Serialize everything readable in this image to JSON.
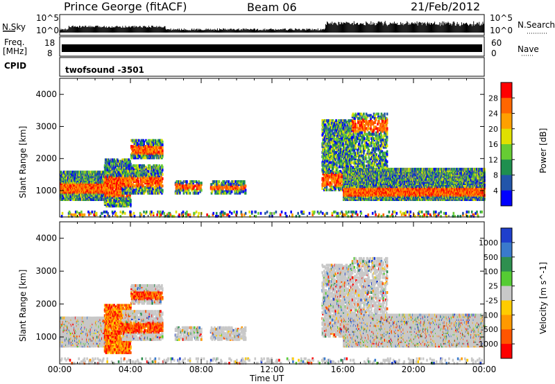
{
  "header": {
    "station": "Prince George (fitACF)",
    "beam": "Beam 06",
    "date": "21/Feb/2012"
  },
  "side_labels": {
    "nsky": "N.Sky",
    "freq_line1": "Freq.",
    "freq_line2": "[MHz]",
    "cpid": "CPID",
    "nsearch": "N.Search",
    "nave": "Nave"
  },
  "noise_axis": {
    "left_top": "10^5",
    "left_bottom": "10^0",
    "right_top": "10^5",
    "right_bottom": "10^0"
  },
  "freq_axis": {
    "left_top": "18",
    "left_bottom": "8",
    "right_top": "60",
    "right_bottom": "0"
  },
  "cpid_text": "twofsound -3501",
  "colors": {
    "frame": "#000000",
    "background": "#ffffff"
  },
  "chart_data": [
    {
      "type": "heatmap",
      "panel": "power",
      "ylabel": "Slant Range [km]",
      "xlabel": "Time UT",
      "ylim": [
        180,
        4500
      ],
      "y_ticks": [
        "1000",
        "2000",
        "3000",
        "4000"
      ],
      "x_ticks": [
        "00:00",
        "04:00",
        "08:00",
        "12:00",
        "16:00",
        "20:00",
        "00:00"
      ],
      "colorbar": {
        "label": "Power [dB]",
        "ticks": [
          "28",
          "24",
          "20",
          "16",
          "12",
          "8",
          "4"
        ],
        "colors": [
          "#ff0000",
          "#ff6600",
          "#ffa000",
          "#e0e000",
          "#66cc33",
          "#1f8f4f",
          "#2255aa",
          "#0000ff"
        ]
      }
    },
    {
      "type": "heatmap",
      "panel": "velocity",
      "ylabel": "Slant Range [km]",
      "xlabel": "Time UT",
      "ylim": [
        180,
        4500
      ],
      "y_ticks": [
        "1000",
        "2000",
        "3000",
        "4000"
      ],
      "x_ticks": [
        "00:00",
        "04:00",
        "08:00",
        "12:00",
        "16:00",
        "20:00",
        "00:00"
      ],
      "colorbar": {
        "label": "Velocity [m s^-1]",
        "ticks": [
          "1000",
          "500",
          "100",
          "25",
          "-25",
          "-100",
          "-500",
          "-1000"
        ],
        "colors": [
          "#1f3fcc",
          "#3a7acc",
          "#2e8f4f",
          "#55cc33",
          "#c8c8c8",
          "#ffcc00",
          "#ff9900",
          "#ff5500",
          "#ff0000"
        ]
      }
    }
  ]
}
